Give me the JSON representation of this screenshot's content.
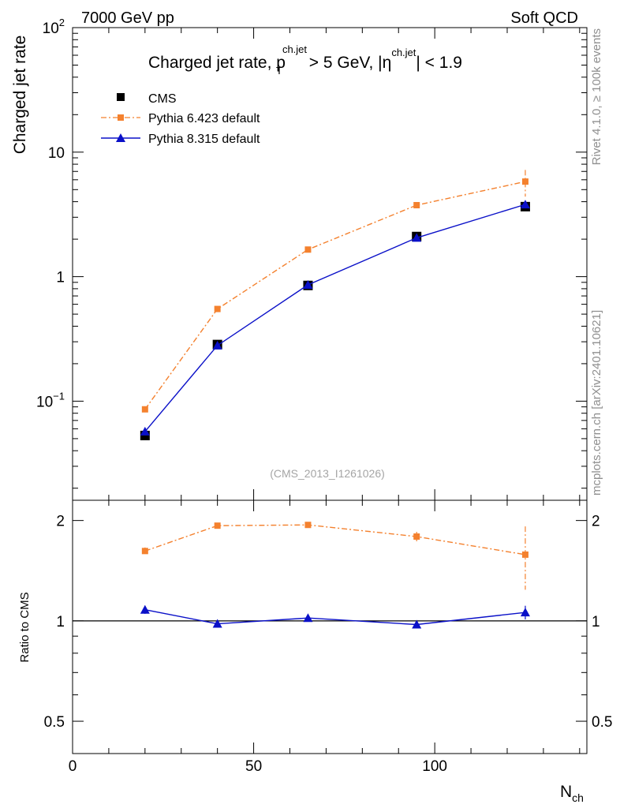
{
  "header": {
    "energy_label": "7000 GeV pp",
    "process_label": "Soft QCD"
  },
  "side_labels": {
    "rivet": "Rivet 4.1.0, ≥ 100k events",
    "mcplots": "mcplots.cern.ch [arXiv:2401.10621]"
  },
  "chart_data": {
    "type": "line",
    "title": {
      "prefix": "Charged jet rate, p",
      "pt_sup": "ch.jet",
      "pt_sub": "T",
      "middle": " > 5 GeV,  |η",
      "eta_sup": "ch.jet",
      "suffix": "| < 1.9"
    },
    "analysis_id": "(CMS_2013_I1261026)",
    "xlabel": "N",
    "xlabel_sub": "ch",
    "ylabel": "Charged jet rate",
    "ratio_ylabel": "Ratio to CMS",
    "xlim": [
      0,
      142
    ],
    "ylim": [
      0.016,
      100
    ],
    "yscale": "log",
    "ratio_ylim": [
      0.4,
      2.3
    ],
    "ratio_yscale": "log",
    "x_ticks": [
      "0",
      "50",
      "100"
    ],
    "y_ticks": [
      {
        "base": "10",
        "exp": "−1",
        "value": 0.1
      },
      {
        "base": "1",
        "exp": "",
        "value": 1
      },
      {
        "base": "10",
        "exp": "",
        "value": 10
      },
      {
        "base": "10",
        "exp": "2",
        "value": 100
      }
    ],
    "ratio_ticks": [
      {
        "label": "0.5",
        "value": 0.5
      },
      {
        "label": "1",
        "value": 1
      },
      {
        "label": "2",
        "value": 2
      }
    ],
    "legend": [
      "CMS",
      "Pythia 6.423 default",
      "Pythia 8.315 default"
    ],
    "x": [
      20,
      40,
      65,
      95,
      125
    ],
    "series": [
      {
        "name": "CMS",
        "color": "#000000",
        "marker": "square",
        "values": [
          0.053,
          0.285,
          0.85,
          2.1,
          3.65
        ],
        "ratio": [
          1.0,
          1.0,
          1.0,
          1.0,
          1.0
        ]
      },
      {
        "name": "Pythia 6.423 default",
        "color": "#f4812e",
        "marker": "small-square",
        "line": "dash-dot",
        "values": [
          0.086,
          0.55,
          1.65,
          3.75,
          5.8
        ],
        "errors": [
          0.003,
          0.01,
          0.03,
          0.1,
          1.4
        ],
        "ratio": [
          1.62,
          1.93,
          1.94,
          1.79,
          1.58
        ],
        "ratio_errors": [
          0.04,
          0.02,
          0.02,
          0.06,
          0.34
        ]
      },
      {
        "name": "Pythia 8.315 default",
        "color": "#0a10c8",
        "marker": "triangle",
        "line": "solid",
        "values": [
          0.057,
          0.28,
          0.86,
          2.05,
          3.8
        ],
        "errors": [
          0.002,
          0.005,
          0.015,
          0.05,
          0.25
        ],
        "ratio": [
          1.08,
          0.98,
          1.02,
          0.975,
          1.06
        ],
        "ratio_errors": [
          0.03,
          0.01,
          0.01,
          0.01,
          0.05
        ]
      }
    ]
  }
}
